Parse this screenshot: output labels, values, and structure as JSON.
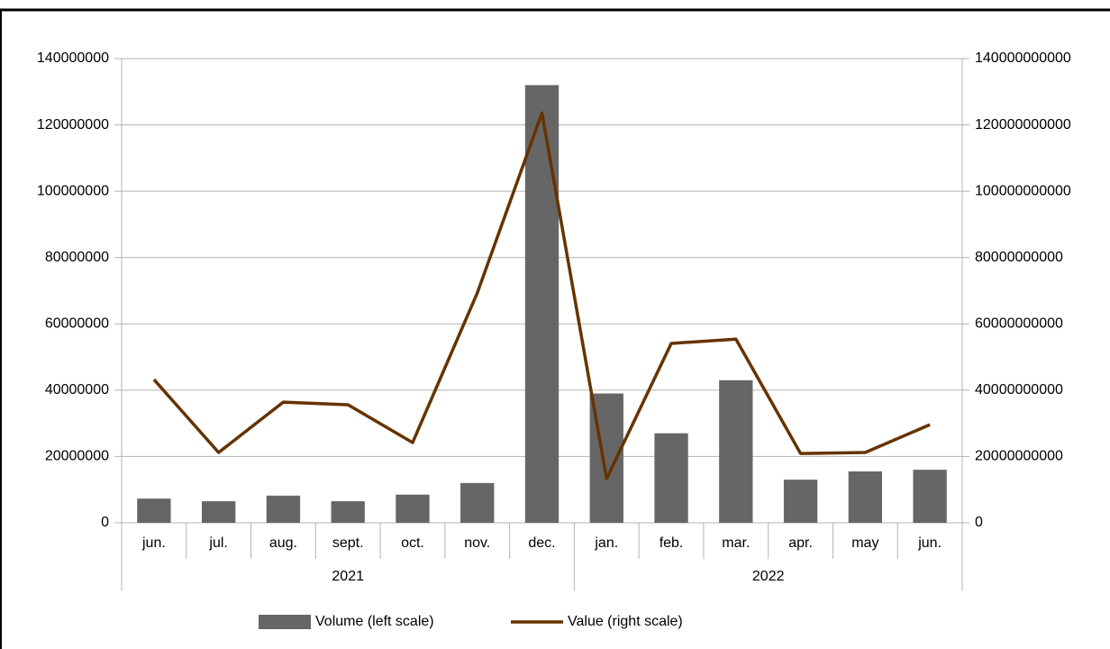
{
  "chart_data": {
    "type": "bar-line",
    "groups": [
      {
        "name": "2021",
        "categories": [
          "jun.",
          "jul.",
          "aug.",
          "sept.",
          "oct.",
          "nov.",
          "dec."
        ]
      },
      {
        "name": "2022",
        "categories": [
          "jan.",
          "feb.",
          "mar.",
          "apr.",
          "may",
          "jun."
        ]
      }
    ],
    "series": [
      {
        "name": "Volume (left scale)",
        "type": "bar",
        "color": "#666666",
        "values": [
          7300000,
          6500000,
          8200000,
          6500000,
          8500000,
          12000000,
          132000000,
          39000000,
          27000000,
          43000000,
          13000000,
          15500000,
          16000000
        ]
      },
      {
        "name": "Value (right scale)",
        "type": "line",
        "axis": "y2",
        "color": "#663300",
        "values": [
          43200000000,
          21200000000,
          36400000000,
          35600000000,
          24200000000,
          69300000000,
          123600000000,
          13300000000,
          54100000000,
          55400000000,
          20900000000,
          21200000000,
          29600000000
        ]
      }
    ],
    "ylim": [
      0,
      140000000
    ],
    "yticks": [
      0,
      20000000,
      40000000,
      60000000,
      80000000,
      100000000,
      120000000,
      140000000
    ],
    "y2lim": [
      0,
      140000000000
    ],
    "y2ticks": [
      0,
      20000000000,
      40000000000,
      60000000000,
      80000000000,
      100000000000,
      120000000000,
      140000000000
    ],
    "grid": true,
    "legend": "bottom"
  }
}
